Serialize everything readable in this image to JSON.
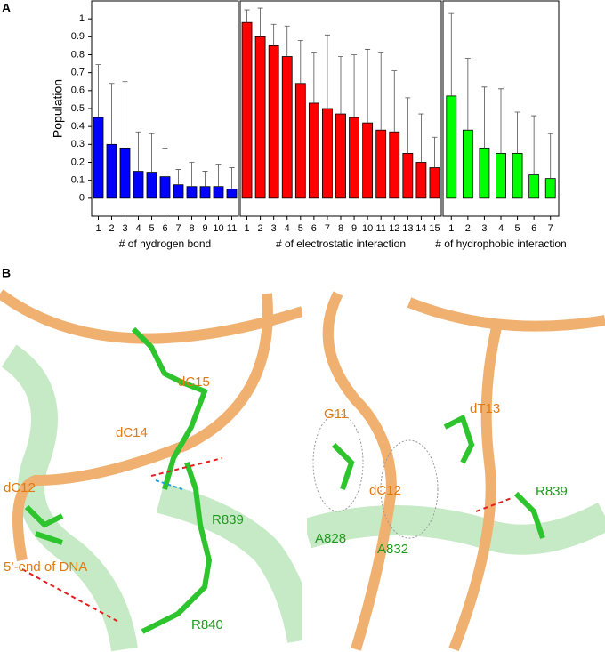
{
  "panel_labels": [
    "A",
    "B"
  ],
  "chart_data": [
    {
      "type": "bar",
      "ylabel": "Population",
      "xlabel": "# of hydrogen bond",
      "color": "#0000ff",
      "categories": [
        "1",
        "2",
        "3",
        "4",
        "5",
        "6",
        "7",
        "8",
        "9",
        "10",
        "11"
      ],
      "values": [
        0.45,
        0.3,
        0.28,
        0.15,
        0.145,
        0.12,
        0.075,
        0.065,
        0.065,
        0.065,
        0.05
      ],
      "errors": [
        0.295,
        0.34,
        0.37,
        0.22,
        0.215,
        0.16,
        0.085,
        0.135,
        0.085,
        0.125,
        0.12
      ],
      "ylim": [
        -0.1,
        1.1
      ],
      "yticks": [
        0.0,
        0.1,
        0.2,
        0.3,
        0.4,
        0.5,
        0.6,
        0.7,
        0.8,
        0.9,
        1.0
      ]
    },
    {
      "type": "bar",
      "xlabel": "# of electrostatic interaction",
      "color": "#ff0000",
      "categories": [
        "1",
        "2",
        "3",
        "4",
        "5",
        "6",
        "7",
        "8",
        "9",
        "10",
        "11",
        "12",
        "13",
        "14",
        "15"
      ],
      "values": [
        0.98,
        0.9,
        0.85,
        0.79,
        0.64,
        0.53,
        0.5,
        0.47,
        0.45,
        0.42,
        0.38,
        0.37,
        0.25,
        0.2,
        0.17
      ],
      "errors": [
        0.07,
        0.16,
        0.12,
        0.17,
        0.24,
        0.28,
        0.41,
        0.32,
        0.35,
        0.41,
        0.43,
        0.34,
        0.31,
        0.27,
        0.17
      ],
      "ylim": [
        -0.1,
        1.1
      ]
    },
    {
      "type": "bar",
      "xlabel": "# of hydrophobic interaction",
      "color": "#00ff00",
      "categories": [
        "1",
        "2",
        "3",
        "4",
        "5",
        "6",
        "7"
      ],
      "values": [
        0.57,
        0.38,
        0.28,
        0.25,
        0.25,
        0.13,
        0.11
      ],
      "errors": [
        0.46,
        0.4,
        0.34,
        0.36,
        0.23,
        0.33,
        0.25
      ],
      "ylim": [
        -0.1,
        1.1
      ]
    }
  ],
  "panel_b": {
    "left": [
      "dC15",
      "dC14",
      "R839",
      "dC12",
      "5’-end of DNA",
      "R840"
    ],
    "right": [
      "G11",
      "dT13",
      "dC12",
      "R839",
      "A828",
      "A832"
    ]
  }
}
